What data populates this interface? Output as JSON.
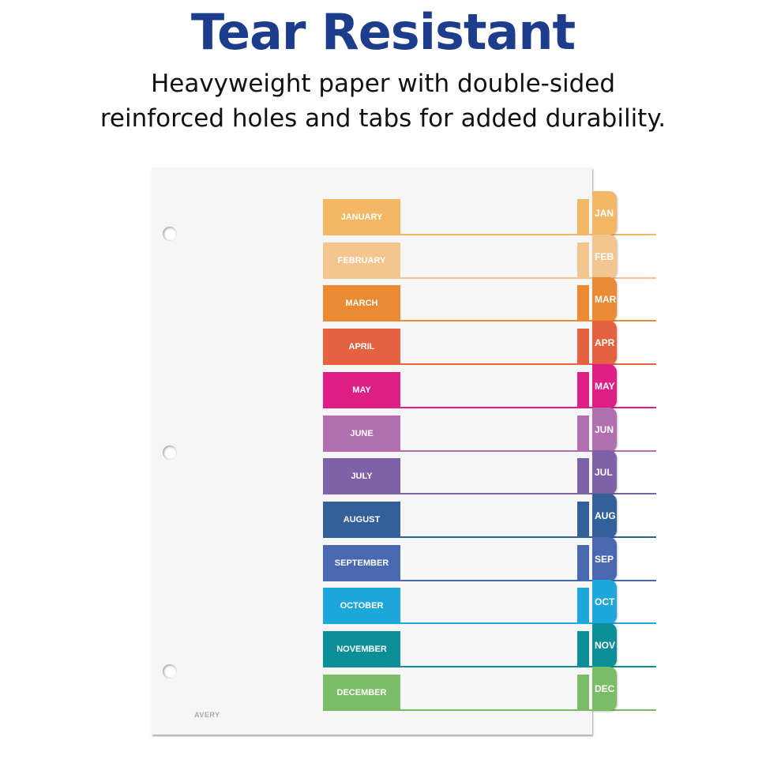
{
  "header": {
    "title": "Tear Resistant",
    "subtitle_line1": "Heavyweight paper with double-sided",
    "subtitle_line2": "reinforced holes and tabs for added durability."
  },
  "product": {
    "logo": "AVERY",
    "months": [
      {
        "label": "JANUARY",
        "tab": "JAN",
        "color": "#f2b865"
      },
      {
        "label": "FEBRUARY",
        "tab": "FEB",
        "color": "#f3c690"
      },
      {
        "label": "MARCH",
        "tab": "MAR",
        "color": "#ea8a32"
      },
      {
        "label": "APRIL",
        "tab": "APR",
        "color": "#e5613f"
      },
      {
        "label": "MAY",
        "tab": "MAY",
        "color": "#df1f86"
      },
      {
        "label": "JUNE",
        "tab": "JUN",
        "color": "#b070b0"
      },
      {
        "label": "JULY",
        "tab": "JUL",
        "color": "#7e62a8"
      },
      {
        "label": "AUGUST",
        "tab": "AUG",
        "color": "#34609a"
      },
      {
        "label": "SEPTEMBER",
        "tab": "SEP",
        "color": "#4a68b0"
      },
      {
        "label": "OCTOBER",
        "tab": "OCT",
        "color": "#1da8dc"
      },
      {
        "label": "NOVEMBER",
        "tab": "NOV",
        "color": "#0a8f98"
      },
      {
        "label": "DECEMBER",
        "tab": "DEC",
        "color": "#7bbc66"
      }
    ]
  }
}
